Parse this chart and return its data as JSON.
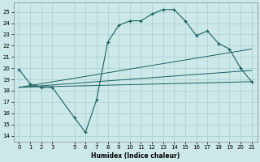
{
  "xlabel": "Humidex (Indice chaleur)",
  "x_ticks": [
    0,
    1,
    2,
    3,
    5,
    6,
    7,
    8,
    9,
    10,
    11,
    12,
    13,
    14,
    15,
    16,
    17,
    18,
    19,
    20,
    21
  ],
  "ylim": [
    13.5,
    25.8
  ],
  "xlim": [
    -0.5,
    21.5
  ],
  "yticks": [
    14,
    15,
    16,
    17,
    18,
    19,
    20,
    21,
    22,
    23,
    24,
    25
  ],
  "bg_color": "#cce8e8",
  "grid_color": "#aacece",
  "line_color": "#1a6060",
  "series": [
    {
      "x": [
        0,
        1,
        2,
        3,
        5,
        6,
        7,
        8,
        9,
        10,
        11,
        12,
        13,
        14,
        15,
        16,
        17,
        18,
        19,
        20,
        21
      ],
      "y": [
        19.9,
        18.6,
        18.3,
        18.3,
        15.6,
        14.3,
        17.2,
        22.3,
        23.8,
        24.2,
        24.2,
        24.8,
        25.2,
        25.2,
        24.2,
        22.9,
        23.3,
        22.2,
        21.7,
        20.0,
        18.8
      ],
      "marker": true
    },
    {
      "x": [
        0,
        21
      ],
      "y": [
        18.3,
        18.8
      ],
      "marker": false
    },
    {
      "x": [
        0,
        21
      ],
      "y": [
        18.3,
        19.8
      ],
      "marker": false
    },
    {
      "x": [
        0,
        21
      ],
      "y": [
        18.3,
        21.7
      ],
      "marker": false
    }
  ]
}
